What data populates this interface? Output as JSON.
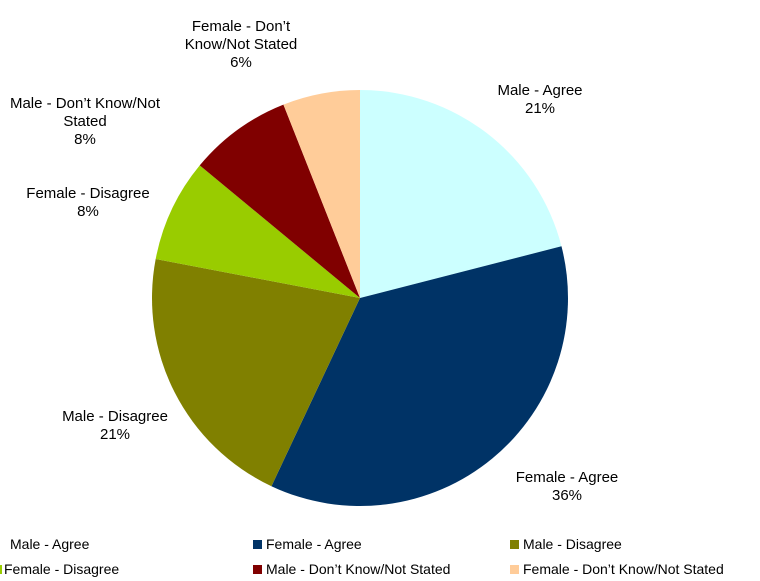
{
  "chart_data": {
    "type": "pie",
    "categories": [
      "Male - Agree",
      "Female - Agree",
      "Male - Disagree",
      "Female - Disagree",
      "Male - Don’t Know/Not Stated",
      "Female - Don’t Know/Not Stated"
    ],
    "values": [
      21,
      36,
      21,
      8,
      8,
      6
    ],
    "value_labels": [
      "21%",
      "36%",
      "21%",
      "8%",
      "8%",
      "6%"
    ],
    "colors": [
      "#ccffff",
      "#003366",
      "#808000",
      "#99cc00",
      "#800000",
      "#ffcc99"
    ],
    "legend": "bottom"
  }
}
